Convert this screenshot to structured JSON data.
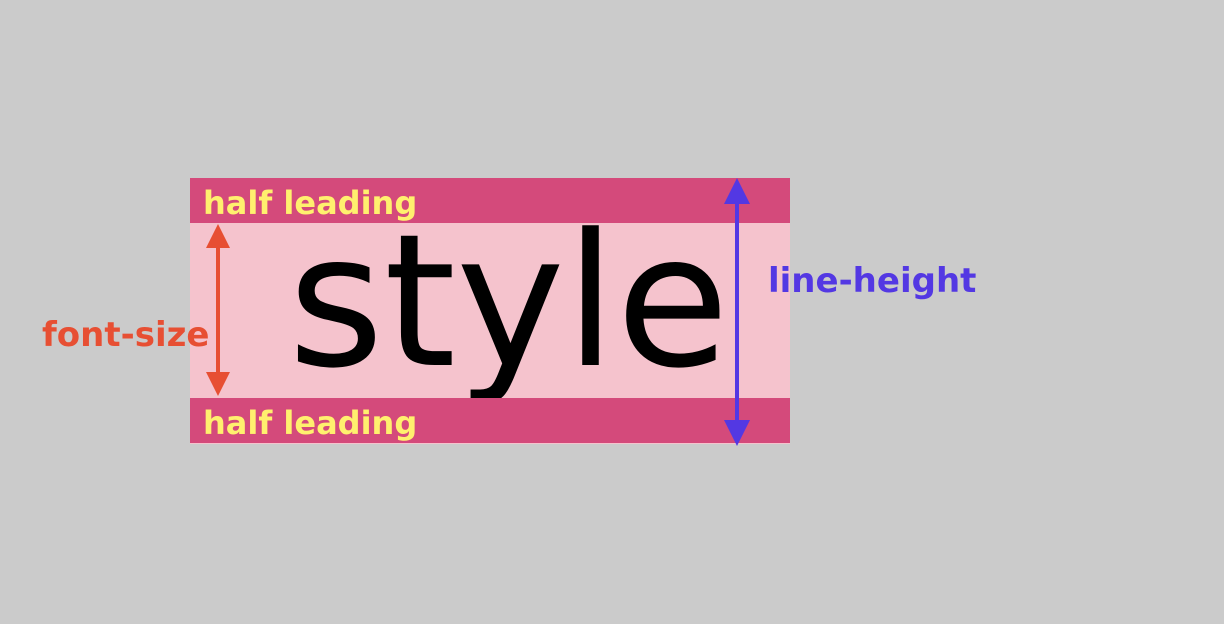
{
  "diagram": {
    "sample_word": "style",
    "half_leading_top": "half leading",
    "half_leading_bottom": "half leading",
    "font_size_label": "font-size",
    "line_height_label": "line-height"
  },
  "colors": {
    "background": "#cbcbcb",
    "content_area": "#f5c3cd",
    "half_leading": "#d44a7b",
    "half_leading_text": "#fff06e",
    "font_size_arrow": "#e74f33",
    "line_height_arrow": "#5338e3"
  },
  "icons": [
    "font-size-double-arrow-icon",
    "line-height-double-arrow-icon"
  ]
}
